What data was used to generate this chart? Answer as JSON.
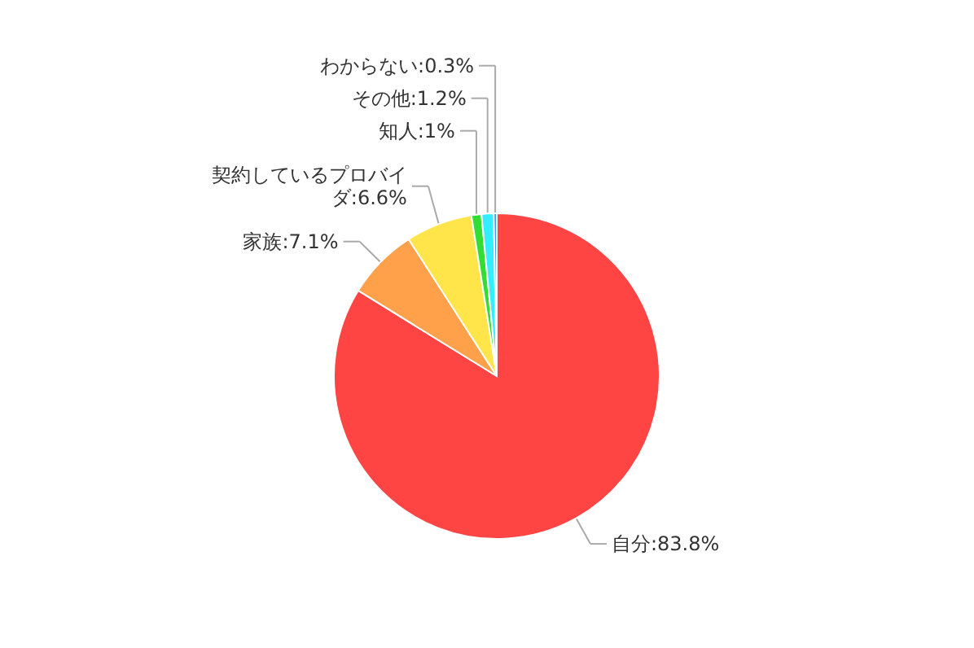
{
  "chart_data": {
    "type": "pie",
    "categories": [
      "自分",
      "家族",
      "契約しているプロバイダ",
      "知人",
      "その他",
      "わからない"
    ],
    "values": [
      83.8,
      7.1,
      6.6,
      1,
      1.2,
      0.3
    ],
    "colors": [
      "#ff4444",
      "#ffa04a",
      "#ffe44a",
      "#33dd33",
      "#33eeff",
      "#3399ff"
    ],
    "value_labels": [
      "83.8%",
      "7.1%",
      "6.6%",
      "1%",
      "1.2%",
      "0.3%"
    ]
  }
}
